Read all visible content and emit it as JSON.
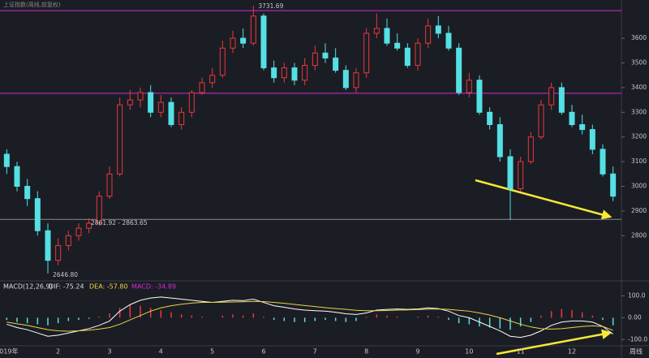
{
  "chart_data": {
    "type": "candlestick",
    "title": "上证指数(周线,前复权)",
    "period_label": "周线",
    "categories": [
      "2019年",
      null,
      null,
      null,
      null,
      "2",
      null,
      null,
      null,
      null,
      "3",
      null,
      null,
      null,
      null,
      "4",
      null,
      null,
      null,
      null,
      "5",
      null,
      null,
      null,
      null,
      "6",
      null,
      null,
      null,
      null,
      "7",
      null,
      null,
      null,
      null,
      "8",
      null,
      null,
      null,
      null,
      "9",
      null,
      null,
      null,
      null,
      "10",
      null,
      null,
      null,
      null,
      "11",
      null,
      null,
      null,
      null,
      "12",
      null,
      null,
      null,
      null
    ],
    "open": [
      3130,
      3080,
      3000,
      2950,
      2820,
      2700,
      2760,
      2800,
      2830,
      2850,
      2960,
      3050,
      3330,
      3350,
      3380,
      3300,
      3340,
      3250,
      3300,
      3380,
      3420,
      3450,
      3560,
      3600,
      3580,
      3690,
      3480,
      3440,
      3480,
      3430,
      3490,
      3540,
      3520,
      3470,
      3400,
      3460,
      3620,
      3640,
      3580,
      3560,
      3490,
      3580,
      3650,
      3620,
      3560,
      3380,
      3430,
      3300,
      3250,
      3120,
      2990,
      3100,
      3200,
      3330,
      3400,
      3300,
      3250,
      3230,
      3150,
      3050
    ],
    "high": [
      3150,
      3100,
      3030,
      2980,
      2850,
      2790,
      2820,
      2850,
      2870,
      2980,
      3080,
      3360,
      3390,
      3400,
      3410,
      3370,
      3360,
      3320,
      3390,
      3440,
      3480,
      3590,
      3630,
      3640,
      3731.69,
      3700,
      3510,
      3500,
      3500,
      3520,
      3570,
      3580,
      3560,
      3490,
      3480,
      3640,
      3700,
      3680,
      3620,
      3580,
      3600,
      3680,
      3690,
      3650,
      3580,
      3460,
      3450,
      3320,
      3280,
      3150,
      3120,
      3220,
      3350,
      3420,
      3420,
      3330,
      3290,
      3250,
      3170,
      3080
    ],
    "low": [
      3050,
      2980,
      2920,
      2800,
      2646.8,
      2680,
      2740,
      2780,
      2810,
      2840,
      2950,
      3040,
      3310,
      3320,
      3280,
      3280,
      3240,
      3230,
      3280,
      3370,
      3400,
      3440,
      3540,
      3560,
      3570,
      3470,
      3420,
      3420,
      3410,
      3410,
      3470,
      3500,
      3460,
      3390,
      3380,
      3440,
      3600,
      3570,
      3550,
      3480,
      3470,
      3560,
      3600,
      3550,
      3370,
      3360,
      3290,
      3230,
      3100,
      2863.65,
      2980,
      3090,
      3190,
      3310,
      3290,
      3240,
      3210,
      3130,
      3040,
      2940
    ],
    "close": [
      3080,
      3000,
      2950,
      2820,
      2700,
      2760,
      2800,
      2830,
      2850,
      2960,
      3050,
      3330,
      3350,
      3380,
      3300,
      3340,
      3250,
      3300,
      3380,
      3420,
      3450,
      3560,
      3600,
      3580,
      3690,
      3480,
      3440,
      3480,
      3430,
      3490,
      3540,
      3520,
      3470,
      3400,
      3460,
      3620,
      3640,
      3580,
      3560,
      3490,
      3580,
      3650,
      3620,
      3560,
      3380,
      3430,
      3300,
      3250,
      3120,
      2990,
      3100,
      3200,
      3330,
      3400,
      3300,
      3250,
      3230,
      3150,
      3050,
      2960
    ],
    "up_color": "#e8383d",
    "down_color": "#54e0e4",
    "ylim": [
      2620,
      3755
    ],
    "yticks": [
      2800,
      2900,
      3000,
      3100,
      3200,
      3300,
      3400,
      3500,
      3600
    ],
    "hlines": [
      {
        "value": 3712,
        "color": "#d42ad4"
      },
      {
        "value": 3377,
        "color": "#d42ad4"
      },
      {
        "value": 2866,
        "color": "#8a8a8a"
      }
    ],
    "high_label": "3731.69",
    "low_label": "2646.80",
    "range_label": "2861.92 - 2863.65",
    "macd": {
      "title": "MACD(12,26,9)",
      "dif_label": "DIF: -75.24",
      "dea_label": "DEA: -57.80",
      "macd_label": "MACD: -34.89",
      "ylim": [
        -125,
        165
      ],
      "yticks": [
        {
          "value": -100,
          "label": "-100.0"
        },
        {
          "value": 0,
          "label": "0.00"
        },
        {
          "value": 100,
          "label": "100.0"
        }
      ],
      "hist": [
        -10,
        -20,
        -25,
        -30,
        -35,
        -25,
        -15,
        -10,
        -5,
        5,
        20,
        45,
        60,
        55,
        45,
        35,
        25,
        15,
        10,
        5,
        0,
        10,
        15,
        10,
        20,
        5,
        -10,
        -15,
        -20,
        -20,
        -15,
        -10,
        -15,
        -20,
        -15,
        5,
        15,
        10,
        5,
        0,
        5,
        10,
        5,
        -10,
        -25,
        -30,
        -40,
        -45,
        -50,
        -55,
        -40,
        -20,
        10,
        30,
        40,
        35,
        25,
        10,
        -10,
        -34.89
      ],
      "series": [
        {
          "name": "DIF",
          "color": "#ffffff",
          "values": [
            -30,
            -45,
            -55,
            -70,
            -85,
            -80,
            -70,
            -60,
            -50,
            -35,
            -15,
            30,
            60,
            80,
            90,
            95,
            90,
            85,
            80,
            75,
            70,
            75,
            80,
            78,
            85,
            70,
            55,
            48,
            40,
            35,
            32,
            30,
            25,
            18,
            15,
            22,
            35,
            38,
            40,
            38,
            40,
            45,
            42,
            30,
            10,
            0,
            -20,
            -40,
            -60,
            -85,
            -90,
            -80,
            -60,
            -35,
            -20,
            -15,
            -15,
            -20,
            -40,
            -75.24
          ]
        },
        {
          "name": "DEA",
          "color": "#e8d44a",
          "values": [
            -20,
            -28,
            -35,
            -45,
            -55,
            -60,
            -62,
            -60,
            -57,
            -52,
            -45,
            -30,
            -10,
            10,
            30,
            45,
            55,
            62,
            67,
            70,
            70,
            71,
            72,
            73,
            75,
            74,
            70,
            66,
            61,
            56,
            51,
            46,
            42,
            38,
            34,
            32,
            32,
            33,
            35,
            36,
            37,
            39,
            40,
            38,
            34,
            30,
            22,
            12,
            0,
            -15,
            -30,
            -42,
            -50,
            -52,
            -50,
            -45,
            -40,
            -37,
            -40,
            -57.8
          ]
        }
      ]
    }
  }
}
